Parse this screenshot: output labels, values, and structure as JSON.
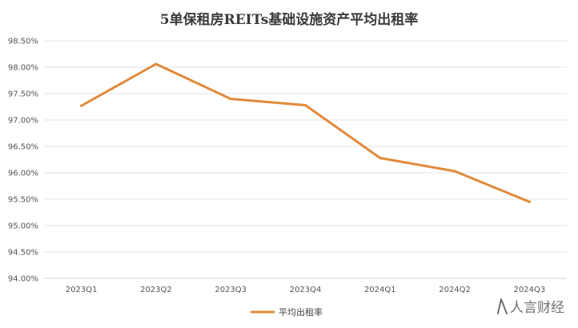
{
  "chart_data": {
    "type": "line",
    "title": "5单保租房REITs基础设施资产平均出租率",
    "xlabel": "",
    "ylabel": "",
    "categories": [
      "2023Q1",
      "2023Q2",
      "2023Q3",
      "2023Q4",
      "2024Q1",
      "2024Q2",
      "2024Q3"
    ],
    "series": [
      {
        "name": "平均出租率",
        "values": [
          97.27,
          98.06,
          97.4,
          97.28,
          96.28,
          96.03,
          95.45
        ],
        "color": "#e08a3c"
      }
    ],
    "yticks": [
      "94.00%",
      "94.50%",
      "95.00%",
      "95.50%",
      "96.00%",
      "96.50%",
      "97.00%",
      "97.50%",
      "98.00%",
      "98.50%"
    ],
    "ylim": [
      94.0,
      98.5
    ],
    "grid": true,
    "legend_position": "bottom-center"
  },
  "watermark": {
    "text": "人言财经",
    "icon": "person-icon"
  },
  "colors": {
    "grid": "#e3e3e3",
    "axis": "#d0d0d0"
  }
}
